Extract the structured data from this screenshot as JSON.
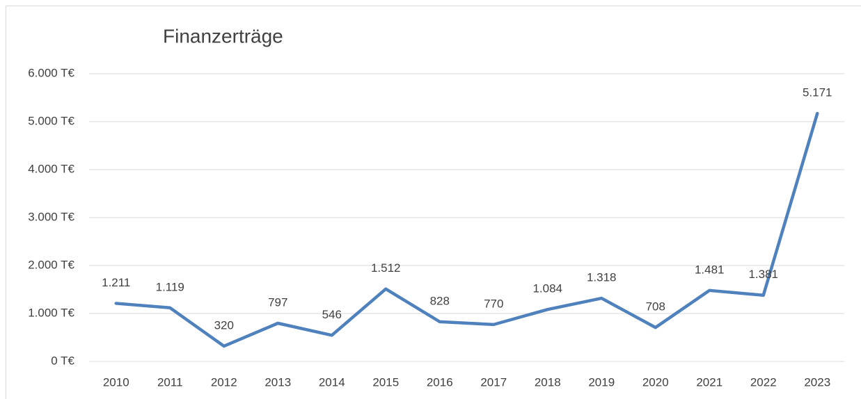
{
  "chart_data": {
    "type": "line",
    "title": "Finanzerträge",
    "categories": [
      "2010",
      "2011",
      "2012",
      "2013",
      "2014",
      "2015",
      "2016",
      "2017",
      "2018",
      "2019",
      "2020",
      "2021",
      "2022",
      "2023"
    ],
    "values": [
      1211,
      1119,
      320,
      797,
      546,
      1512,
      828,
      770,
      1084,
      1318,
      708,
      1481,
      1381,
      5171
    ],
    "value_labels": [
      "1.211",
      "1.119",
      "320",
      "797",
      "546",
      "1.512",
      "828",
      "770",
      "1.084",
      "1.318",
      "708",
      "1.481",
      "1.381",
      "5.171"
    ],
    "color": "#4f81bd",
    "ylim": [
      0,
      6000
    ],
    "yticks": [
      {
        "value": 0,
        "label": "0 T€"
      },
      {
        "value": 1000,
        "label": "1.000 T€"
      },
      {
        "value": 2000,
        "label": "2.000 T€"
      },
      {
        "value": 3000,
        "label": "3.000 T€"
      },
      {
        "value": 4000,
        "label": "4.000 T€"
      },
      {
        "value": 5000,
        "label": "5.000 T€"
      },
      {
        "value": 6000,
        "label": "6.000 T€"
      }
    ],
    "grid": true
  }
}
